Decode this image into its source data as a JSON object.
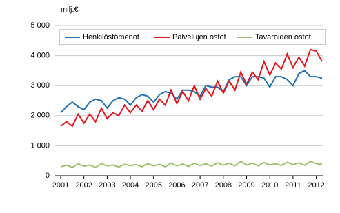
{
  "chart_data": {
    "type": "line",
    "y_label": "milj.€",
    "x": [
      2001,
      2001.25,
      2001.5,
      2001.75,
      2002,
      2002.25,
      2002.5,
      2002.75,
      2003,
      2003.25,
      2003.5,
      2003.75,
      2004,
      2004.25,
      2004.5,
      2004.75,
      2005,
      2005.25,
      2005.5,
      2005.75,
      2006,
      2006.25,
      2006.5,
      2006.75,
      2007,
      2007.25,
      2007.5,
      2007.75,
      2008,
      2008.25,
      2008.5,
      2008.75,
      2009,
      2009.25,
      2009.5,
      2009.75,
      2010,
      2010.25,
      2010.5,
      2010.75,
      2011,
      2011.25,
      2011.5,
      2011.75,
      2012,
      2012.25
    ],
    "series": [
      {
        "name": "Henkilöstömenot",
        "color": "#1f6fb4",
        "values": [
          2100,
          2300,
          2450,
          2300,
          2200,
          2450,
          2550,
          2500,
          2250,
          2500,
          2600,
          2550,
          2350,
          2600,
          2700,
          2650,
          2450,
          2700,
          2800,
          2750,
          2550,
          2850,
          2850,
          2800,
          2650,
          3000,
          2950,
          2950,
          2800,
          3200,
          3300,
          3300,
          3000,
          3300,
          3300,
          3250,
          2950,
          3300,
          3300,
          3200,
          3000,
          3400,
          3500,
          3300,
          3300,
          3250
        ]
      },
      {
        "name": "Palvelujen ostot",
        "color": "#e8141c",
        "values": [
          1650,
          1800,
          1650,
          2050,
          1750,
          2050,
          1800,
          2250,
          1900,
          2100,
          2000,
          2350,
          2100,
          2350,
          2150,
          2500,
          2200,
          2550,
          2350,
          2850,
          2400,
          2800,
          2500,
          3000,
          2550,
          2900,
          2650,
          3150,
          2750,
          3150,
          2850,
          3450,
          3050,
          3450,
          3200,
          3800,
          3350,
          3750,
          3550,
          4050,
          3600,
          3950,
          3650,
          4200,
          4150,
          3800
        ]
      },
      {
        "name": "Tavaroiden ostot",
        "color": "#9cc26a",
        "values": [
          300,
          350,
          280,
          400,
          320,
          360,
          280,
          400,
          330,
          360,
          290,
          380,
          340,
          370,
          300,
          410,
          330,
          380,
          300,
          420,
          330,
          390,
          310,
          420,
          340,
          400,
          320,
          430,
          350,
          420,
          330,
          480,
          360,
          420,
          330,
          440,
          360,
          400,
          340,
          450,
          370,
          430,
          350,
          480,
          400,
          380
        ]
      }
    ],
    "xlim": [
      2001,
      2012.25
    ],
    "xticks": [
      2001,
      2002,
      2003,
      2004,
      2005,
      2006,
      2007,
      2008,
      2009,
      2010,
      2011,
      2012
    ],
    "ylim": [
      0,
      5000
    ],
    "yticks": [
      0,
      {
        "value": 1000,
        "label": "1 000"
      },
      {
        "value": 2000,
        "label": "2 000"
      },
      {
        "value": 3000,
        "label": "3 000"
      },
      {
        "value": 4000,
        "label": "4 000"
      },
      {
        "value": 5000,
        "label": "5 000"
      }
    ],
    "grid": true,
    "legend": "top"
  }
}
